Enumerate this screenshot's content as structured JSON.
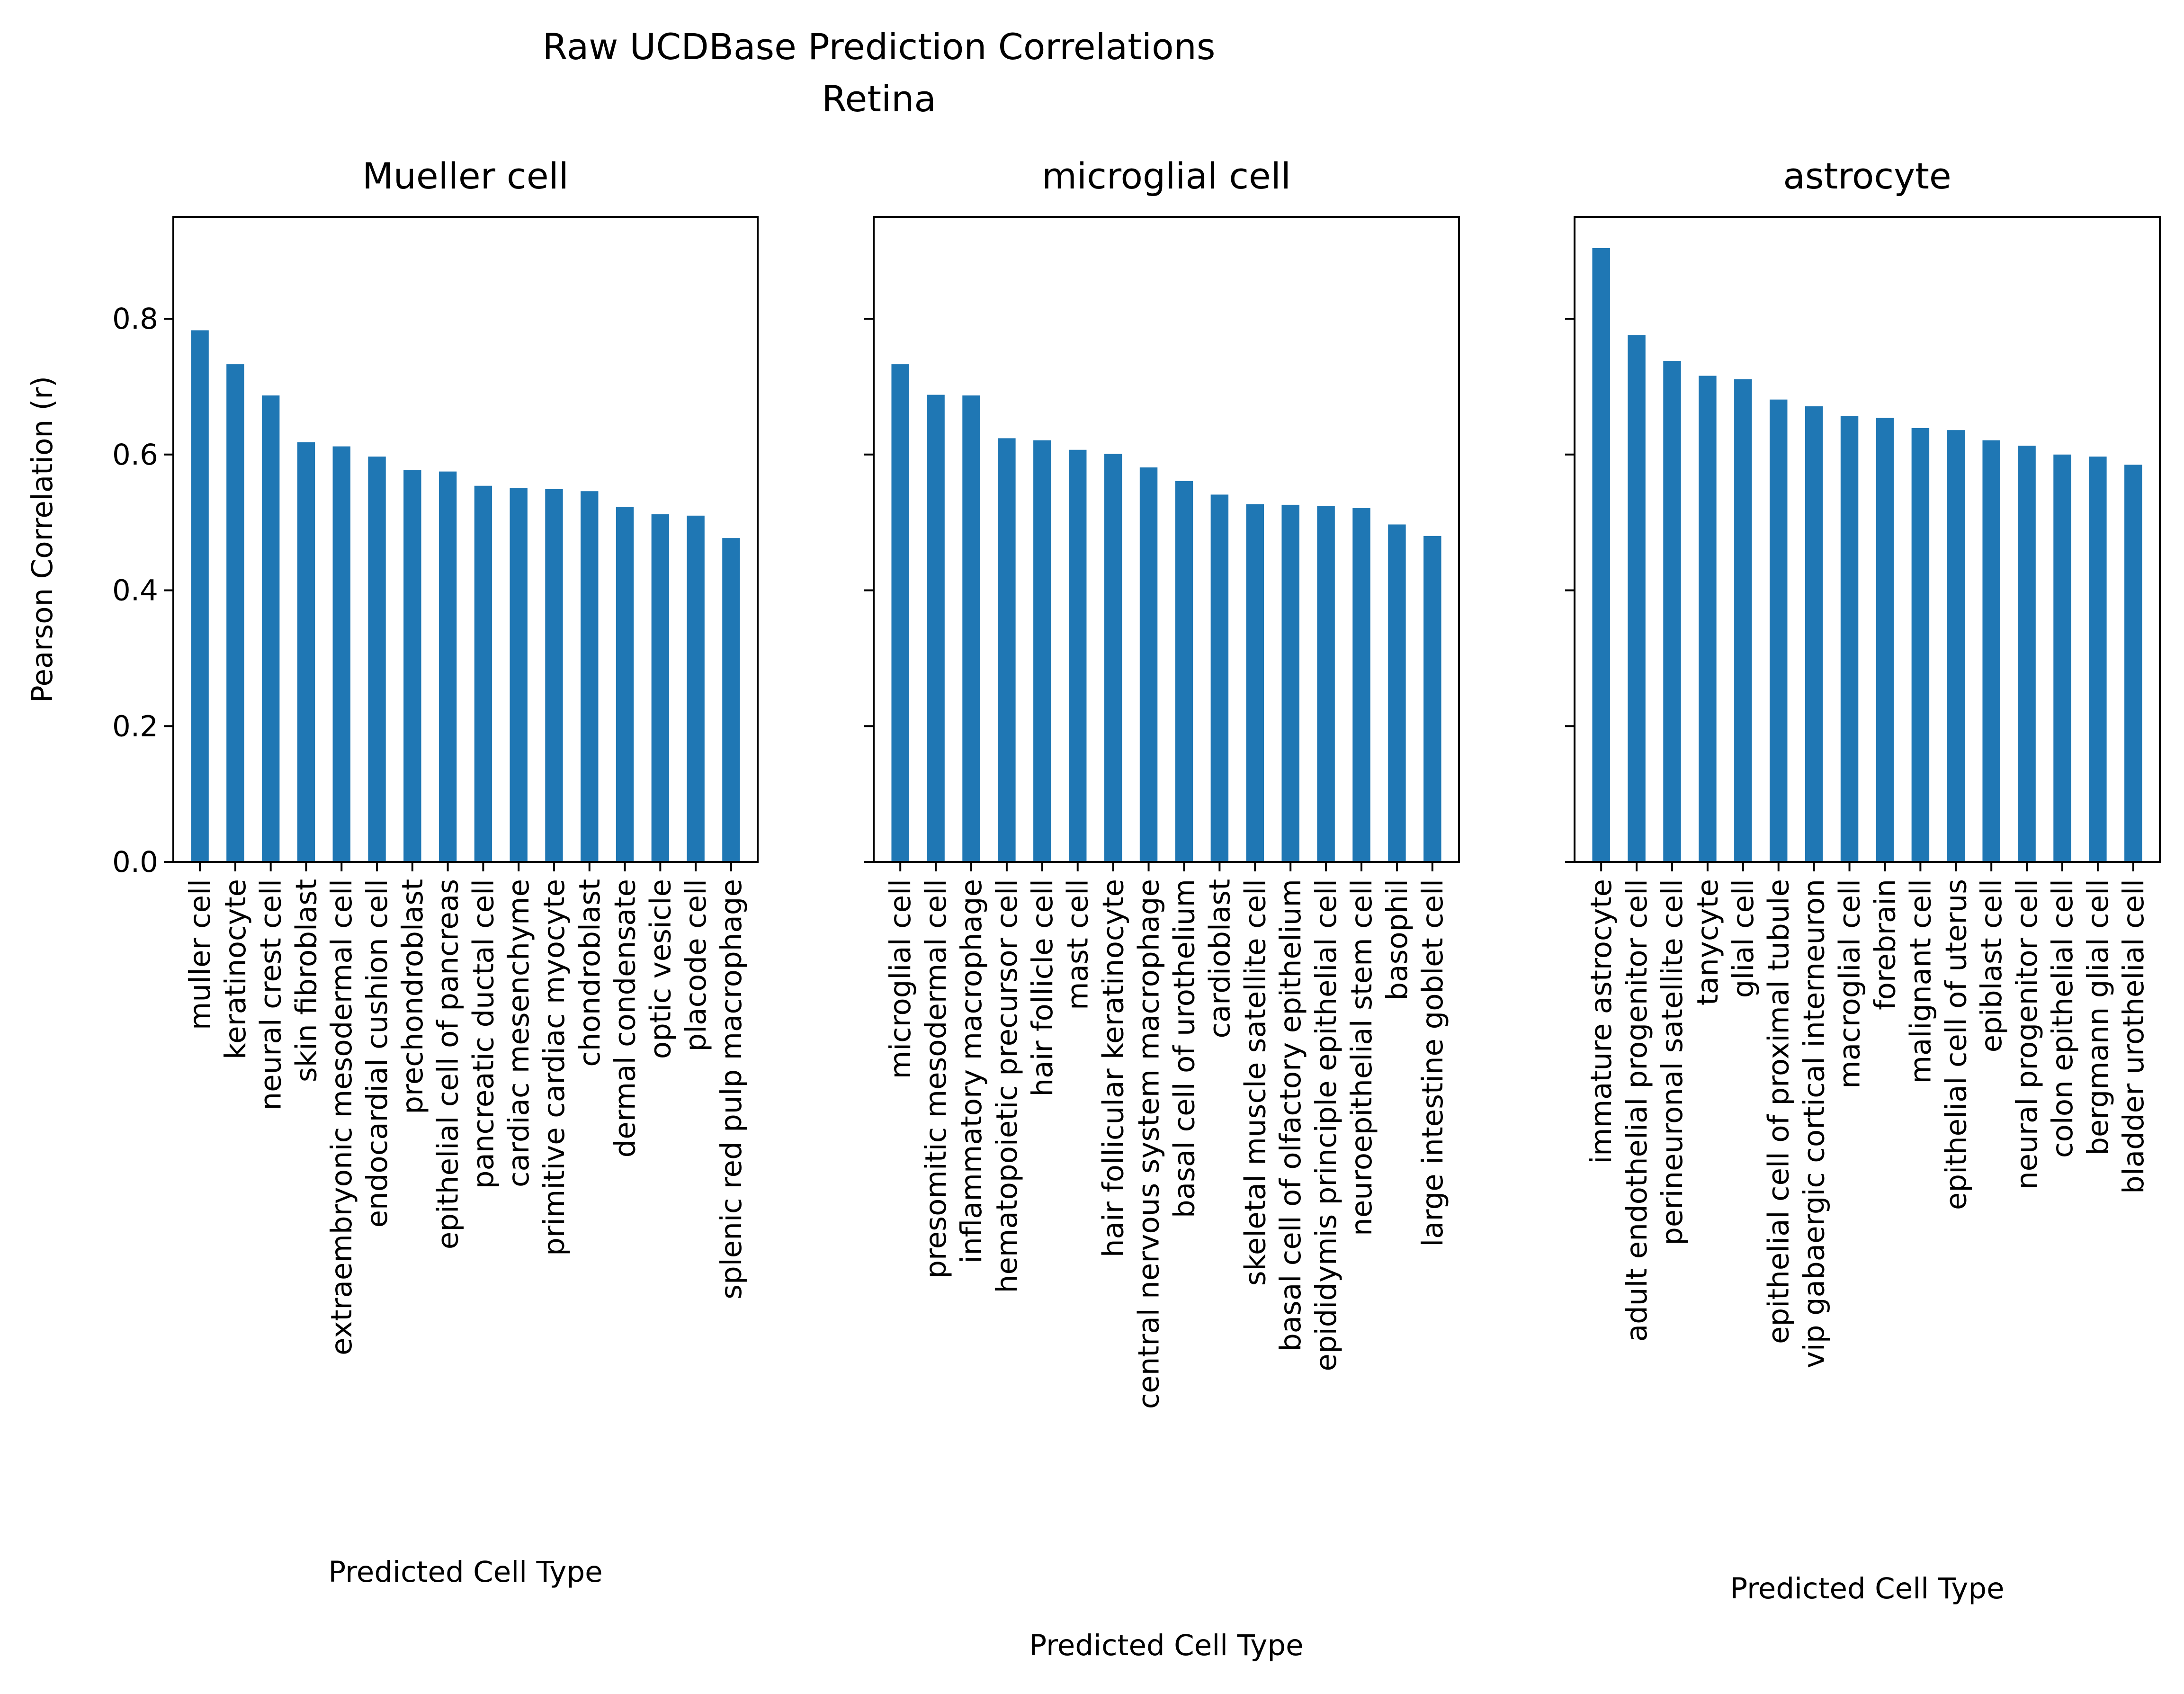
{
  "figure": {
    "title_line1": "Raw UCDBase Prediction Correlations",
    "title_line2": "Retina",
    "ylabel": "Pearson Correlation (r)",
    "bar_color": "#1f77b4"
  },
  "chart_data": [
    {
      "type": "bar",
      "title": "Mueller cell",
      "xlabel": "Predicted Cell Type",
      "ylabel": "Pearson Correlation (r)",
      "ylim": [
        0,
        0.95
      ],
      "yticks": [
        "0.0",
        "0.2",
        "0.4",
        "0.6",
        "0.8"
      ],
      "categories": [
        "muller cell",
        "keratinocyte",
        "neural crest cell",
        "skin fibroblast",
        "extraembryonic mesodermal cell",
        "endocardial cushion cell",
        "prechondroblast",
        "epithelial cell of pancreas",
        "pancreatic ductal cell",
        "cardiac mesenchyme",
        "primitive cardiac myocyte",
        "chondroblast",
        "dermal condensate",
        "optic vesicle",
        "placode cell",
        "splenic red pulp macrophage"
      ],
      "values": [
        0.783,
        0.733,
        0.687,
        0.618,
        0.612,
        0.597,
        0.577,
        0.575,
        0.554,
        0.551,
        0.549,
        0.546,
        0.523,
        0.512,
        0.51,
        0.477
      ]
    },
    {
      "type": "bar",
      "title": "microglial cell",
      "xlabel": "Predicted Cell Type",
      "ylabel": "",
      "ylim": [
        0,
        0.95
      ],
      "yticks": [
        "",
        "",
        "",
        "",
        ""
      ],
      "categories": [
        "microglial cell",
        "presomitic mesodermal cell",
        "inflammatory macrophage",
        "hematopoietic precursor cell",
        "hair follicle cell",
        "mast cell",
        "hair follicular keratinocyte",
        "central nervous system macrophage",
        "basal cell of urothelium",
        "cardioblast",
        "skeletal muscle satellite cell",
        "basal cell of olfactory epithelium",
        "epididymis principle epithelial cell",
        "neuroepithelial stem cell",
        "basophil",
        "large intestine goblet cell"
      ],
      "values": [
        0.733,
        0.688,
        0.687,
        0.624,
        0.621,
        0.607,
        0.601,
        0.581,
        0.561,
        0.541,
        0.527,
        0.526,
        0.524,
        0.521,
        0.497,
        0.48
      ]
    },
    {
      "type": "bar",
      "title": "astrocyte",
      "xlabel": "Predicted Cell Type",
      "ylabel": "",
      "ylim": [
        0,
        0.95
      ],
      "yticks": [
        "",
        "",
        "",
        "",
        ""
      ],
      "categories": [
        "immature astrocyte",
        "adult endothelial progenitor cell",
        "perineuronal satellite cell",
        "tanycyte",
        "glial cell",
        "epithelial cell of proximal tubule",
        "vip gabaergic cortical interneuron",
        "macroglial cell",
        "forebrain",
        "malignant cell",
        "epithelial cell of uterus",
        "epiblast cell",
        "neural progenitor cell",
        "colon epithelial cell",
        "bergmann glial cell",
        "bladder urothelial cell"
      ],
      "values": [
        0.904,
        0.776,
        0.738,
        0.716,
        0.711,
        0.681,
        0.671,
        0.657,
        0.654,
        0.639,
        0.636,
        0.621,
        0.613,
        0.6,
        0.597,
        0.585
      ]
    }
  ]
}
